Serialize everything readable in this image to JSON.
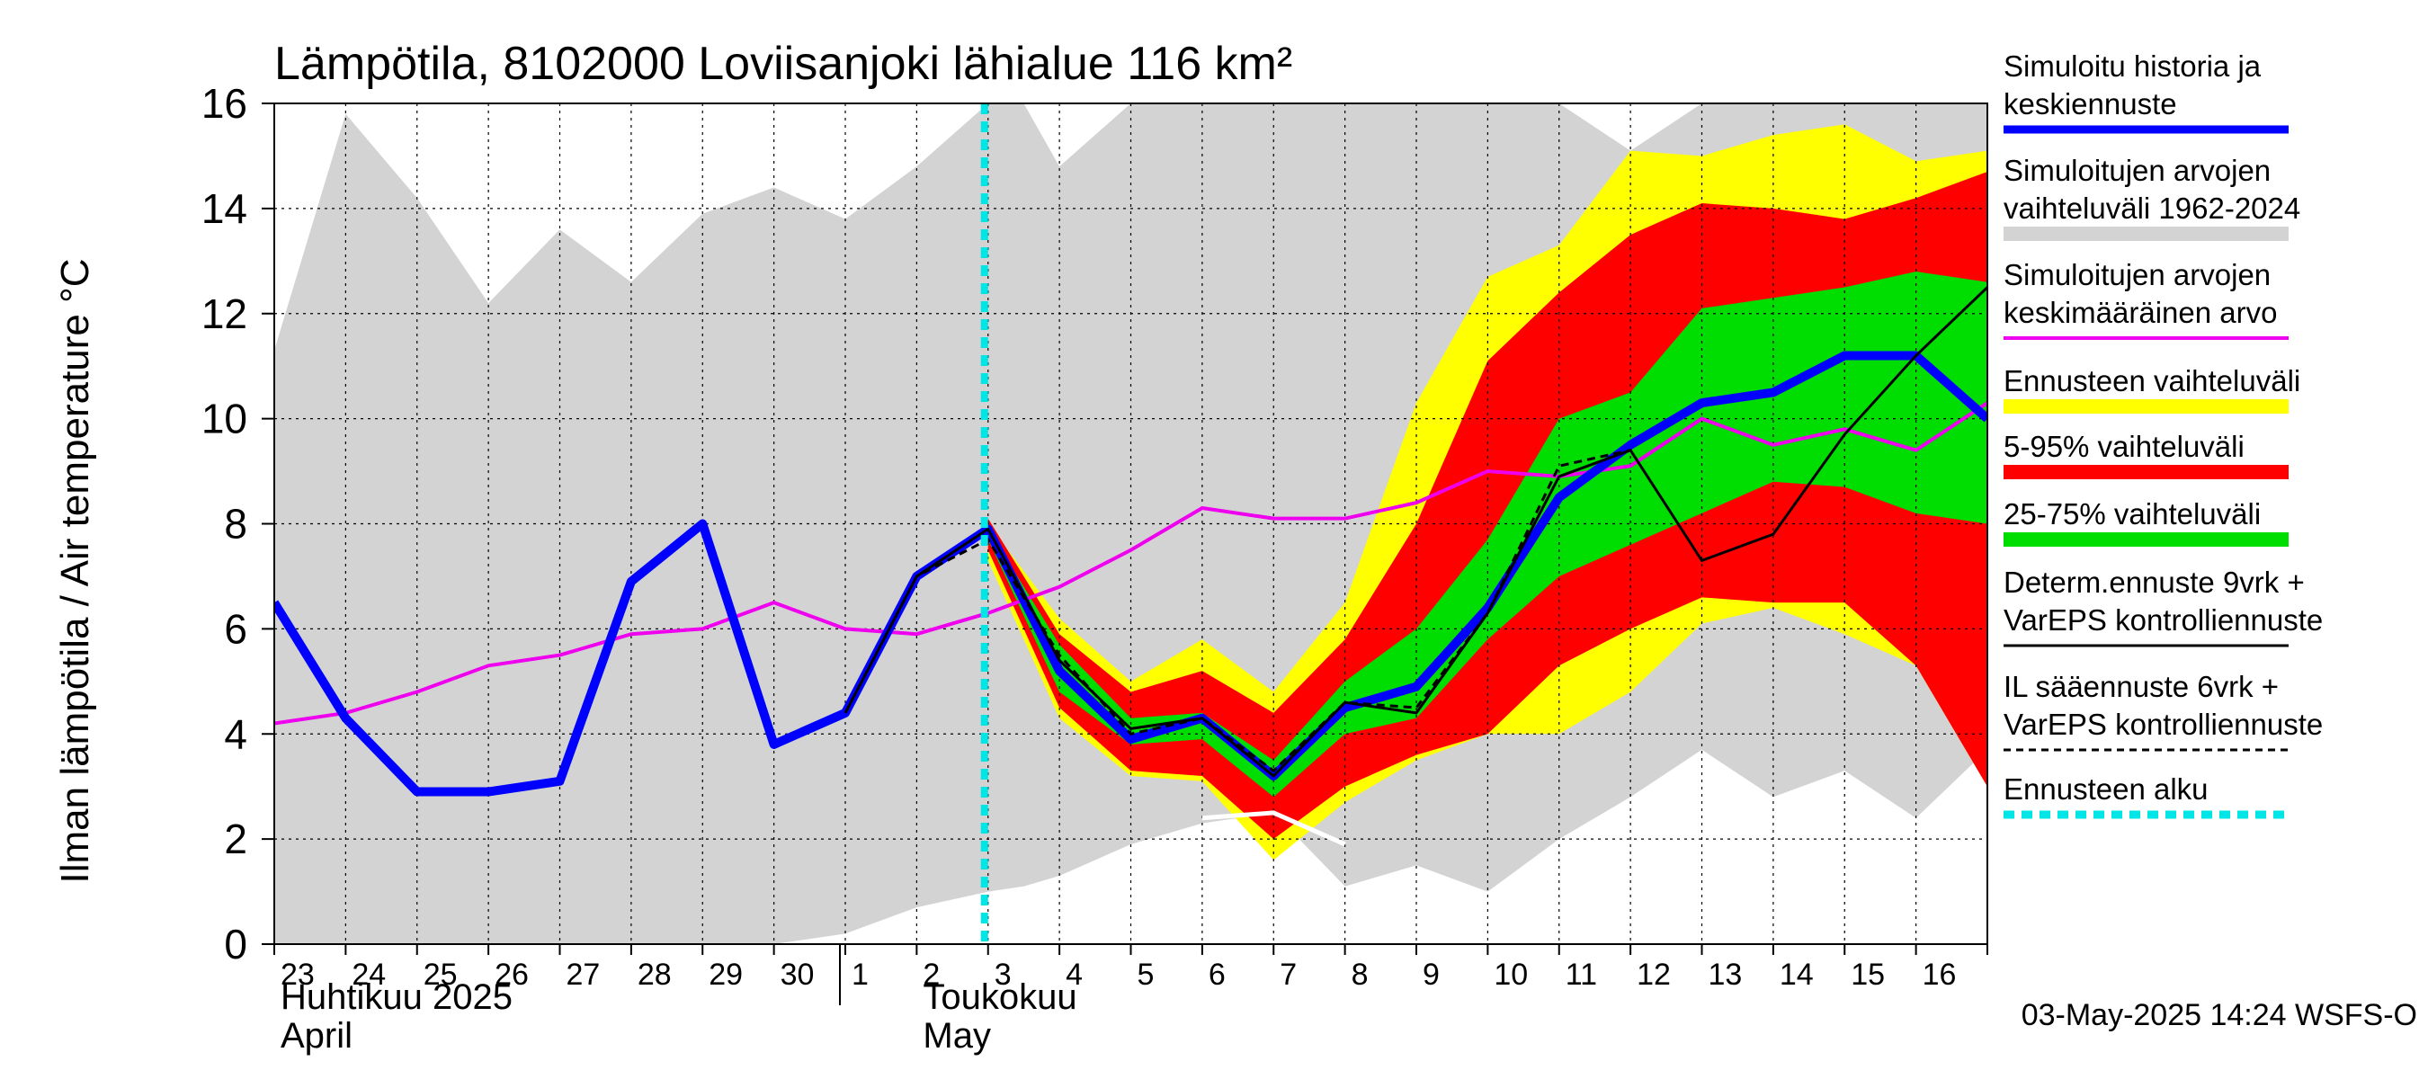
{
  "chart_data": {
    "type": "area",
    "title": "Lämpötila, 8102000 Loviisanjoki lähialue 116 km²",
    "ylabel": "Ilman lämpötila / Air temperature    °C",
    "ylim": [
      0,
      16
    ],
    "yticks": [
      0,
      2,
      4,
      6,
      8,
      10,
      12,
      14,
      16
    ],
    "x_day_labels": [
      "23",
      "24",
      "25",
      "26",
      "27",
      "28",
      "29",
      "30",
      "1",
      "2",
      "3",
      "4",
      "5",
      "6",
      "7",
      "8",
      "9",
      "10",
      "11",
      "12",
      "13",
      "14",
      "15",
      "16"
    ],
    "x_range_days": [
      0,
      24
    ],
    "month_labels": [
      {
        "fi": "Huhtikuu  2025",
        "en": "April",
        "day_index": 0
      },
      {
        "fi": "Toukokuu",
        "en": "May",
        "day_index": 9
      }
    ],
    "forecast_start_day": 10,
    "timestamp": "03-May-2025 14:24 WSFS-O",
    "colors": {
      "history": "#d3d3d3",
      "ensemble": "#ffff00",
      "p5_95": "#ff0000",
      "p25_75": "#00dd00",
      "simulated": "#0000ff",
      "mean": "#ee00ee",
      "determ": "#000000",
      "forecast_start": "#00e5e5",
      "grid": "#000000"
    },
    "legend": [
      {
        "key": "simulated",
        "lines": [
          "Simuloitu historia ja",
          "keskiennuste"
        ]
      },
      {
        "key": "history",
        "lines": [
          "Simuloitujen arvojen",
          "vaihteluväli 1962-2024"
        ]
      },
      {
        "key": "mean",
        "lines": [
          "Simuloitujen arvojen",
          "keskimääräinen arvo"
        ]
      },
      {
        "key": "ensemble",
        "lines": [
          "Ennusteen vaihteluväli"
        ]
      },
      {
        "key": "p5_95",
        "lines": [
          "5-95% vaihteluväli"
        ]
      },
      {
        "key": "p25_75",
        "lines": [
          "25-75% vaihteluväli"
        ]
      },
      {
        "key": "determ",
        "lines": [
          "Determ.ennuste 9vrk +",
          "VarEPS kontrolliennuste"
        ]
      },
      {
        "key": "il",
        "lines": [
          "IL sääennuste 6vrk  +",
          "  VarEPS kontrolliennuste"
        ]
      },
      {
        "key": "forecast_start",
        "lines": [
          "Ennusteen alku"
        ]
      }
    ],
    "series": {
      "history_band": {
        "x": [
          0,
          1,
          2,
          3,
          4,
          5,
          6,
          7,
          8,
          9,
          10,
          10.5,
          11,
          12,
          13,
          14,
          15,
          16,
          17,
          18,
          19,
          20,
          21,
          22,
          23,
          24
        ],
        "low": [
          0,
          0,
          0,
          0,
          0,
          0,
          0,
          0,
          0.2,
          0.7,
          1.0,
          1.1,
          1.3,
          1.9,
          2.3,
          2.5,
          1.1,
          1.5,
          1.0,
          2.0,
          2.8,
          3.7,
          2.8,
          3.3,
          2.4,
          3.7
        ],
        "high": [
          11.3,
          15.8,
          14.2,
          12.2,
          13.6,
          12.6,
          13.9,
          14.4,
          13.8,
          14.8,
          16.0,
          16.0,
          14.8,
          16.0,
          16.0,
          16.0,
          16.0,
          16.0,
          16.0,
          16.0,
          15.1,
          16.0,
          16.0,
          16.0,
          16.0,
          16.0
        ]
      },
      "ensemble_band": {
        "x": [
          10,
          11,
          12,
          13,
          14,
          15,
          16,
          17,
          18,
          19,
          20,
          21,
          22,
          23,
          24
        ],
        "low": [
          7.3,
          4.3,
          3.2,
          3.1,
          1.6,
          2.7,
          3.5,
          4.0,
          4.0,
          4.8,
          6.1,
          6.4,
          5.9,
          5.3,
          3.0
        ],
        "high": [
          8.0,
          6.2,
          5.0,
          5.8,
          4.8,
          6.5,
          10.3,
          12.7,
          13.3,
          15.1,
          15.0,
          15.4,
          15.6,
          14.9,
          15.1
        ]
      },
      "p5_95_band": {
        "x": [
          10,
          11,
          12,
          13,
          14,
          15,
          16,
          17,
          18,
          19,
          20,
          21,
          22,
          23,
          24
        ],
        "low": [
          7.5,
          4.5,
          3.3,
          3.2,
          2.0,
          3.0,
          3.6,
          4.0,
          5.3,
          6.0,
          6.6,
          6.5,
          6.5,
          5.3,
          3.0
        ],
        "high": [
          8.1,
          5.9,
          4.8,
          5.2,
          4.4,
          5.8,
          8.0,
          11.1,
          12.4,
          13.5,
          14.1,
          14.0,
          13.8,
          14.2,
          14.7
        ]
      },
      "p25_75_band": {
        "x": [
          10,
          11,
          12,
          13,
          14,
          15,
          16,
          17,
          18,
          19,
          20,
          21,
          22,
          23,
          24
        ],
        "low": [
          7.7,
          4.8,
          3.8,
          3.9,
          2.8,
          4.0,
          4.3,
          5.8,
          7.0,
          7.6,
          8.2,
          8.8,
          8.7,
          8.2,
          8.0
        ],
        "high": [
          7.9,
          5.7,
          4.3,
          4.4,
          3.5,
          5.0,
          6.0,
          7.7,
          10.0,
          10.5,
          12.1,
          12.3,
          12.5,
          12.8,
          12.6
        ]
      },
      "simulated": {
        "x": [
          0,
          1,
          2,
          3,
          4,
          5,
          6,
          7,
          8,
          9,
          10,
          11,
          12,
          13,
          14,
          15,
          16,
          17,
          18,
          19,
          20,
          21,
          22,
          23,
          24
        ],
        "y": [
          6.5,
          4.3,
          2.9,
          2.9,
          3.1,
          6.9,
          8.0,
          3.8,
          4.4,
          7.0,
          7.9,
          5.2,
          3.9,
          4.3,
          3.2,
          4.5,
          4.9,
          6.4,
          8.5,
          9.5,
          10.3,
          10.5,
          11.2,
          11.2,
          10.0
        ]
      },
      "mean": {
        "x": [
          0,
          1,
          2,
          3,
          4,
          5,
          6,
          7,
          8,
          9,
          10,
          11,
          12,
          13,
          14,
          15,
          16,
          17,
          18,
          19,
          20,
          21,
          22,
          23,
          24
        ],
        "y": [
          4.2,
          4.4,
          4.8,
          5.3,
          5.5,
          5.9,
          6.0,
          6.5,
          6.0,
          5.9,
          6.3,
          6.8,
          7.5,
          8.3,
          8.1,
          8.1,
          8.4,
          9.0,
          8.9,
          9.1,
          10.0,
          9.5,
          9.8,
          9.4,
          10.3
        ]
      },
      "determ": {
        "x": [
          8,
          9,
          10,
          11,
          12,
          13,
          14,
          15,
          16,
          17,
          18,
          19,
          20,
          21,
          22,
          23,
          24
        ],
        "y": [
          4.4,
          7.0,
          7.9,
          5.4,
          4.1,
          4.3,
          3.2,
          4.6,
          4.4,
          6.3,
          8.9,
          9.4,
          7.3,
          7.8,
          9.7,
          11.2,
          12.5
        ]
      },
      "il": {
        "x": [
          8,
          9,
          10,
          11,
          12,
          13,
          14,
          15,
          16,
          17,
          18,
          19
        ],
        "y": [
          4.4,
          7.0,
          7.7,
          5.5,
          4.0,
          4.3,
          3.3,
          4.6,
          4.5,
          6.3,
          9.1,
          9.4
        ]
      },
      "history_low_edge": {
        "x": [
          13,
          14,
          15
        ],
        "y": [
          2.4,
          2.5,
          1.9
        ]
      }
    }
  }
}
